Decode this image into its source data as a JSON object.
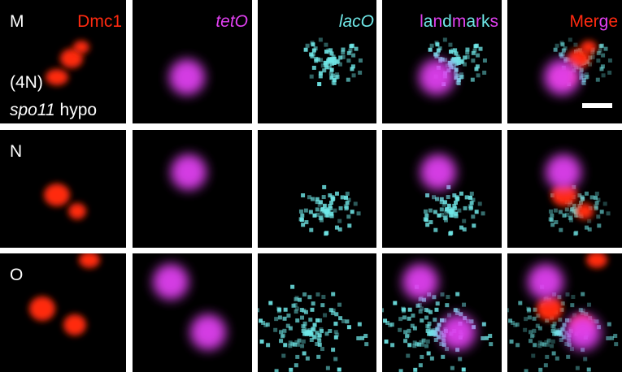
{
  "columns": [
    "Dmc1",
    "tetO",
    "lacO",
    "landmarks",
    "Merge"
  ],
  "rows": [
    {
      "label": "M"
    },
    {
      "label": "N"
    },
    {
      "label": "O"
    }
  ],
  "annotation": {
    "ploidy": "(4N)",
    "genotype": "spo11",
    "allele": "hypo"
  }
}
